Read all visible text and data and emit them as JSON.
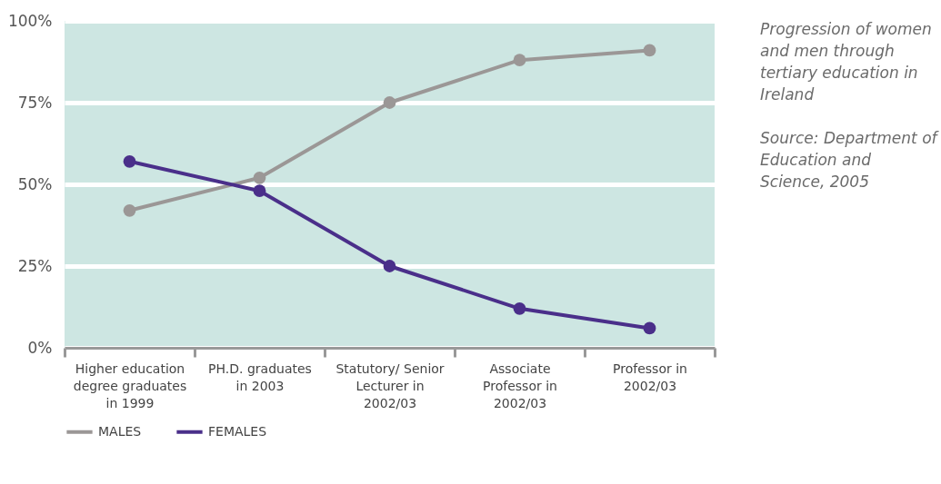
{
  "chart_data": {
    "type": "line",
    "categories": [
      "Higher education degree graduates in 1999",
      "PH.D. graduates in 2003",
      "Statutory/ Senior Lecturer in 2002/03",
      "Associate Professor in 2002/03",
      "Professor in 2002/03"
    ],
    "series": [
      {
        "name": "MALES",
        "color": "#9b9796",
        "values": [
          42,
          52,
          75,
          88,
          91
        ]
      },
      {
        "name": "FEMALES",
        "color": "#4a2f8a",
        "values": [
          57,
          48,
          25,
          12,
          6
        ]
      }
    ],
    "ylim": [
      0,
      100
    ],
    "yticks": [
      {
        "value": 0,
        "label": "0%"
      },
      {
        "value": 25,
        "label": "25%"
      },
      {
        "value": 50,
        "label": "50%"
      },
      {
        "value": 75,
        "label": "75%"
      },
      {
        "value": 100,
        "label": "100%"
      }
    ],
    "grid": "y",
    "legend": "bottom left",
    "marker": "circle",
    "line_style": "solid",
    "annotations": [
      "Progression of women and men through tertiary education in Ireland",
      "Source: Department of Education and Science, 2005"
    ]
  }
}
